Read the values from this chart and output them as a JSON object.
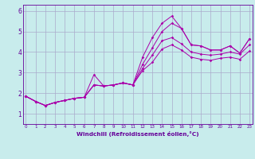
{
  "xlabel": "Windchill (Refroidissement éolien,°C)",
  "bg_color": "#c8ecec",
  "line_color": "#aa00aa",
  "grid_color": "#aaaacc",
  "axis_color": "#660099",
  "x_ticks": [
    0,
    1,
    2,
    3,
    4,
    5,
    6,
    7,
    8,
    9,
    10,
    11,
    12,
    13,
    14,
    15,
    16,
    17,
    18,
    19,
    20,
    21,
    22,
    23
  ],
  "y_ticks": [
    1,
    2,
    3,
    4,
    5,
    6
  ],
  "xlim": [
    -0.3,
    23.3
  ],
  "ylim": [
    0.5,
    6.3
  ],
  "lines": [
    [
      1.85,
      1.6,
      1.4,
      1.55,
      1.65,
      1.75,
      1.8,
      2.9,
      2.35,
      2.4,
      2.5,
      2.4,
      3.75,
      4.7,
      5.4,
      5.75,
      5.15,
      4.35,
      4.3,
      4.1,
      4.1,
      4.3,
      3.95,
      4.65
    ],
    [
      1.85,
      1.6,
      1.4,
      1.55,
      1.65,
      1.75,
      1.8,
      2.4,
      2.35,
      2.4,
      2.5,
      2.4,
      3.4,
      4.2,
      5.0,
      5.4,
      5.15,
      4.35,
      4.3,
      4.1,
      4.1,
      4.3,
      3.95,
      4.65
    ],
    [
      1.85,
      1.6,
      1.4,
      1.55,
      1.65,
      1.75,
      1.8,
      2.4,
      2.35,
      2.4,
      2.5,
      2.4,
      3.2,
      3.85,
      4.55,
      4.7,
      4.4,
      4.0,
      3.9,
      3.85,
      3.9,
      4.0,
      3.9,
      4.35
    ],
    [
      1.85,
      1.6,
      1.4,
      1.55,
      1.65,
      1.75,
      1.8,
      2.4,
      2.35,
      2.4,
      2.5,
      2.4,
      3.1,
      3.5,
      4.15,
      4.35,
      4.1,
      3.75,
      3.65,
      3.6,
      3.7,
      3.75,
      3.65,
      4.05
    ]
  ]
}
